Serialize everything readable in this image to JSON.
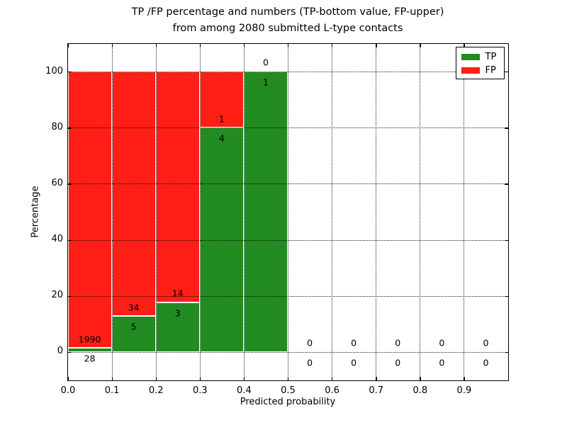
{
  "title": {
    "line1": "TP /FP percentage and numbers (TP-bottom value, FP-upper)",
    "line2": "from among 2080 submitted L-type contacts"
  },
  "chart_data": {
    "type": "bar",
    "stacked": true,
    "title": "TP /FP percentage and numbers (TP-bottom value, FP-upper) from among 2080 submitted L-type contacts",
    "xlabel": "Predicted probability",
    "ylabel": "Percentage",
    "xlim": [
      0.0,
      1.0
    ],
    "ylim": [
      -10,
      110
    ],
    "grid": "dotted",
    "legend_position": "upper-right",
    "total_contacts": 2080,
    "bin_width": 0.1,
    "categories": [
      "0.0-0.1",
      "0.1-0.2",
      "0.2-0.3",
      "0.3-0.4",
      "0.4-0.5",
      "0.5-0.6",
      "0.6-0.7",
      "0.7-0.8",
      "0.8-0.9",
      "0.9-1.0"
    ],
    "series": [
      {
        "name": "TP",
        "color": "#228b22",
        "counts": [
          28,
          5,
          3,
          4,
          1,
          0,
          0,
          0,
          0,
          0
        ],
        "pct": [
          1.39,
          12.82,
          17.65,
          80.0,
          100.0,
          0,
          0,
          0,
          0,
          0
        ]
      },
      {
        "name": "FP",
        "color": "#ff1f16",
        "counts": [
          1990,
          34,
          14,
          1,
          0,
          0,
          0,
          0,
          0,
          0
        ],
        "pct": [
          98.61,
          87.18,
          82.35,
          20.0,
          0.0,
          0,
          0,
          0,
          0,
          0
        ]
      }
    ],
    "xticks": [
      "0.0",
      "0.1",
      "0.2",
      "0.3",
      "0.4",
      "0.5",
      "0.6",
      "0.7",
      "0.8",
      "0.9"
    ],
    "yticks": [
      "0",
      "20",
      "40",
      "60",
      "80",
      "100"
    ]
  },
  "legend": {
    "items": [
      {
        "label": "TP",
        "color": "#228b22"
      },
      {
        "label": "FP",
        "color": "#ff1f16"
      }
    ]
  }
}
